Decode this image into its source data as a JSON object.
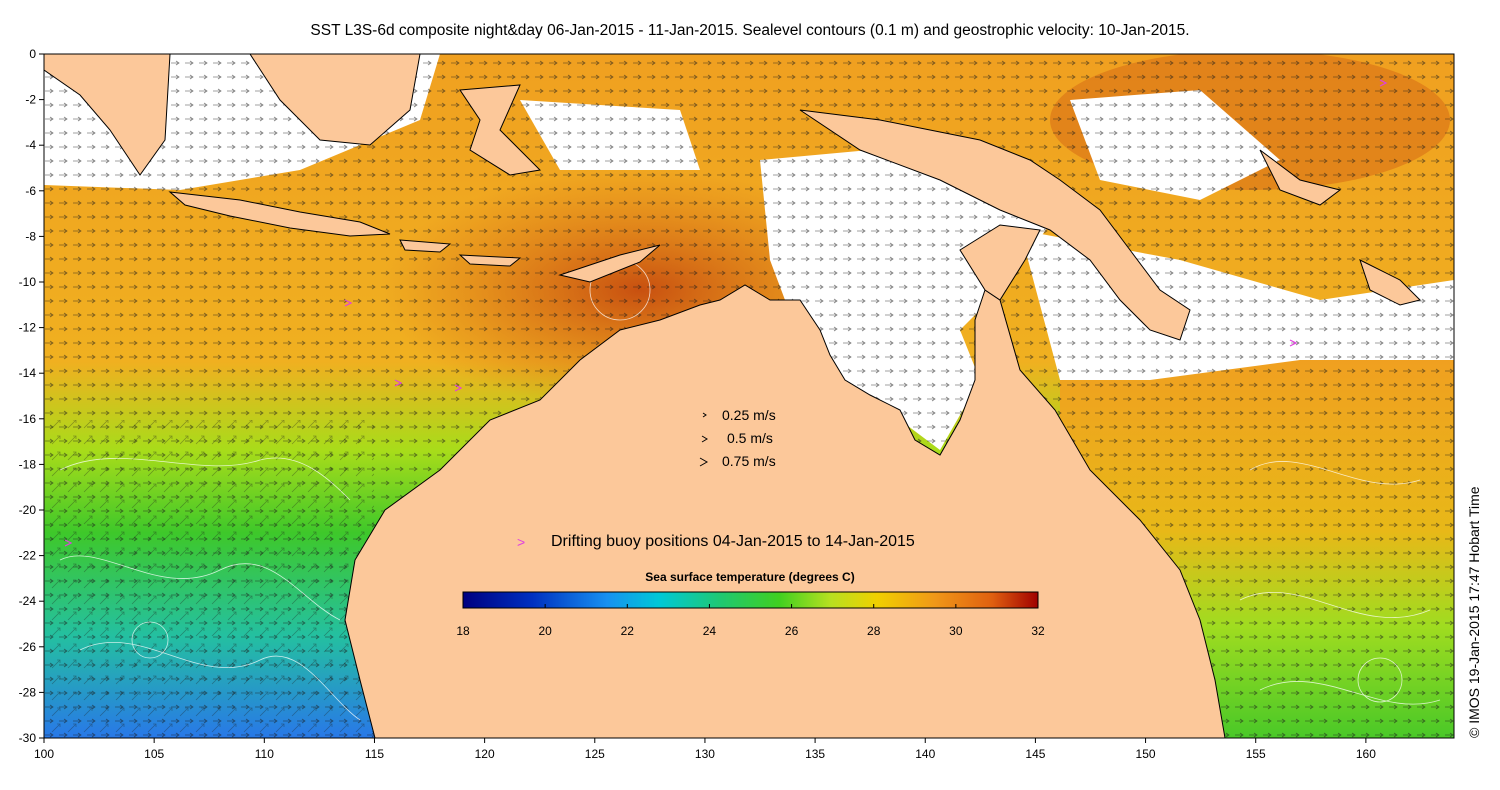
{
  "title": "SST L3S-6d composite night&day 06-Jan-2015 - 11-Jan-2015. Sealevel contours (0.1 m) and geostrophic velocity: 10-Jan-2015.",
  "credit": "© IMOS 19-Jan-2015 17:47 Hobart Time",
  "axes": {
    "x_ticks": [
      "100",
      "105",
      "110",
      "115",
      "120",
      "125",
      "130",
      "135",
      "140",
      "145",
      "150",
      "155",
      "160"
    ],
    "y_ticks": [
      "0",
      "-2",
      "-4",
      "-6",
      "-8",
      "-10",
      "-12",
      "-14",
      "-16",
      "-18",
      "-20",
      "-22",
      "-24",
      "-26",
      "-28",
      "-30"
    ],
    "lon_range": [
      100,
      164
    ],
    "lat_range": [
      -30,
      0
    ]
  },
  "velocity_legend": {
    "items": [
      {
        "label": "0.25 m/s",
        "speed": 0.25
      },
      {
        "label": "0.5 m/s",
        "speed": 0.5
      },
      {
        "label": "0.75 m/s",
        "speed": 0.75
      }
    ]
  },
  "buoy_legend": {
    "symbol": ">",
    "label": "Drifting buoy positions 04-Jan-2015 to 14-Jan-2015",
    "color": "#e040e0"
  },
  "colorbar": {
    "title": "Sea surface temperature (degrees C)",
    "ticks": [
      "18",
      "20",
      "22",
      "24",
      "26",
      "28",
      "30",
      "32"
    ],
    "range": [
      18,
      32
    ]
  },
  "colors": {
    "land": "#fcc89a",
    "cloud": "#ffffff"
  }
}
